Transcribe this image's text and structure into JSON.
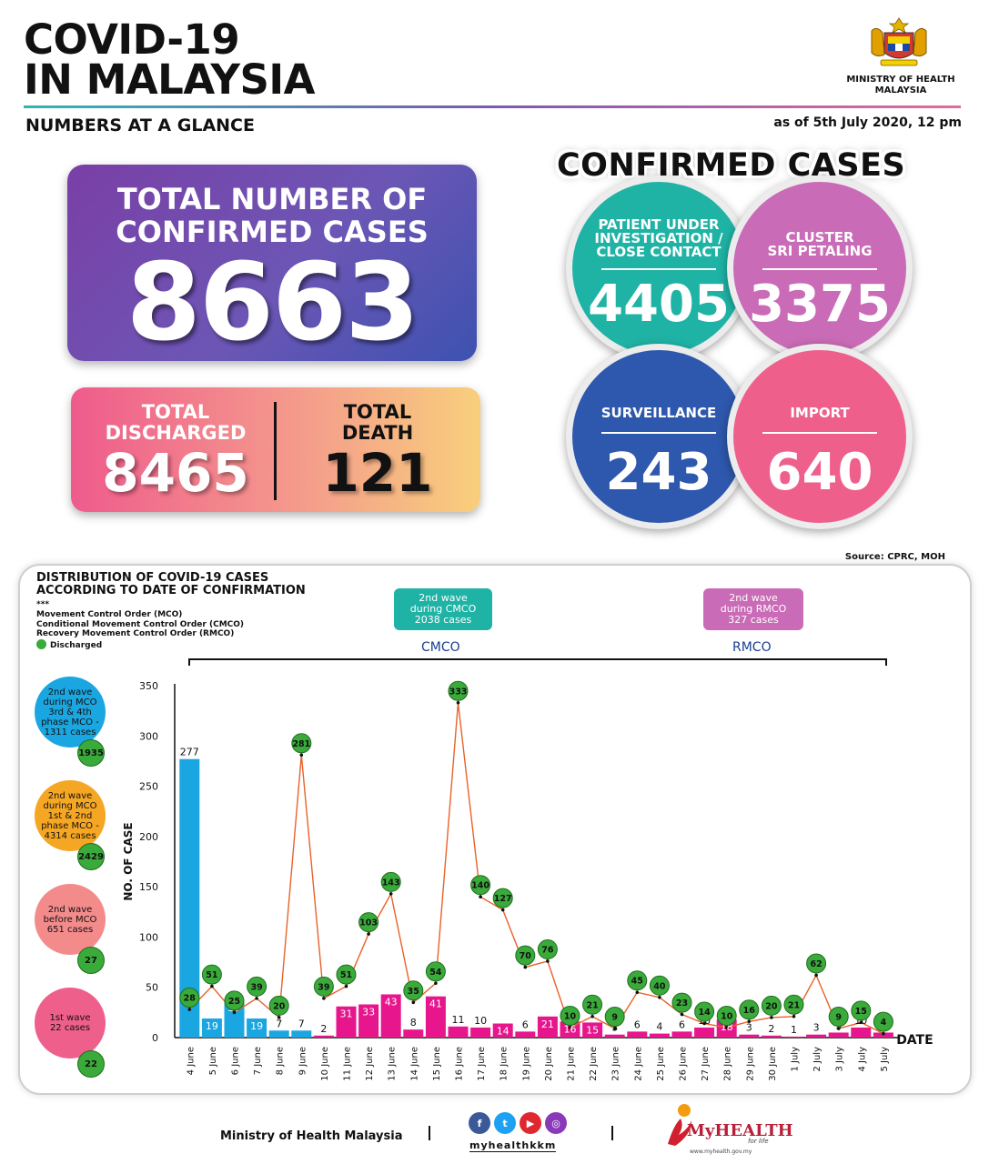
{
  "header": {
    "title_line1": "COVID-19",
    "title_line2": "IN MALAYSIA",
    "subtitle": "NUMBERS AT A GLANCE",
    "as_of": "as of 5th July 2020, 12 pm",
    "ministry_line1": "MINISTRY OF HEALTH",
    "ministry_line2": "MALAYSIA",
    "crest_icon": "malaysia-coat-of-arms-icon"
  },
  "totals": {
    "confirmed_label_1": "TOTAL NUMBER OF",
    "confirmed_label_2": "CONFIRMED CASES",
    "confirmed_value": "8663",
    "discharged_label_1": "TOTAL",
    "discharged_label_2": "DISCHARGED",
    "discharged_value": "8465",
    "death_label_1": "TOTAL",
    "death_label_2": "DEATH",
    "death_value": "121"
  },
  "confirmed_cases": {
    "title": "CONFIRMED CASES",
    "pui": {
      "label_1": "PATIENT UNDER",
      "label_2": "INVESTIGATION /",
      "label_3": "CLOSE CONTACT",
      "value": "4405",
      "color": "#1fb3a5"
    },
    "cluster": {
      "label_1": "CLUSTER",
      "label_2": "SRI PETALING",
      "value": "3375",
      "color": "#c96bb6"
    },
    "surveillance": {
      "label": "SURVEILLANCE",
      "value": "243",
      "color": "#2e58ad"
    },
    "import": {
      "label": "IMPORT",
      "value": "640",
      "color": "#ee5f8c"
    }
  },
  "source": "Source: CPRC, MOH",
  "panel": {
    "title_1": "DISTRIBUTION OF COVID-19 CASES",
    "title_2": "ACCORDING TO DATE OF CONFIRMATION",
    "note_stars": "***",
    "note_1": "Movement Control Order (MCO)",
    "note_2": "Conditional Movement Control Order (CMCO)",
    "note_3": "Recovery Movement Control Order (RMCO)",
    "note_discharged": "Discharged",
    "cmco_box_1": "2nd wave",
    "cmco_box_2": "during CMCO",
    "cmco_box_3": "2038 cases",
    "cmco_label": "CMCO",
    "rmco_box_1": "2nd wave",
    "rmco_box_2": "during RMCO",
    "rmco_box_3": "327 cases",
    "rmco_label": "RMCO",
    "side": [
      {
        "l1": "2nd wave",
        "l2": "during MCO",
        "l3": "3rd & 4th",
        "l4": "phase MCO -",
        "l5": "1311 cases",
        "discharged": "1935",
        "color": "#1aa6e0"
      },
      {
        "l1": "2nd wave",
        "l2": "during MCO",
        "l3": "1st & 2nd",
        "l4": "phase MCO -",
        "l5": "4314 cases",
        "discharged": "2429",
        "color": "#f5a623"
      },
      {
        "l1": "2nd wave",
        "l2": "before MCO",
        "l3": "651 cases",
        "l4": "",
        "l5": "",
        "discharged": "27",
        "color": "#f38b8b"
      },
      {
        "l1": "1st wave",
        "l2": "22 cases",
        "l3": "",
        "l4": "",
        "l5": "",
        "discharged": "22",
        "color": "#ee5f8c"
      }
    ]
  },
  "chart_data": {
    "type": "bar",
    "title": "DISTRIBUTION OF COVID-19 CASES ACCORDING TO DATE OF CONFIRMATION",
    "xlabel": "DATE",
    "ylabel": "NO. OF CASE",
    "ylim": [
      0,
      350
    ],
    "yticks": [
      0,
      50,
      100,
      150,
      200,
      250,
      300,
      350
    ],
    "grid": false,
    "categories": [
      "4 June",
      "5 June",
      "6 June",
      "7 June",
      "8 June",
      "9 June",
      "10 June",
      "11 June",
      "12 June",
      "13 June",
      "14 June",
      "15 June",
      "16 June",
      "17 June",
      "18 June",
      "19 June",
      "20 June",
      "21 June",
      "22 June",
      "23 June",
      "24 June",
      "25 June",
      "26 June",
      "27 June",
      "28 June",
      "29 June",
      "30 June",
      "1 July",
      "2 July",
      "3 July",
      "4 July",
      "5 July"
    ],
    "series": [
      {
        "name": "",
        "type": "bar",
        "values": [
          277,
          19,
          37,
          19,
          7,
          7,
          2,
          31,
          33,
          43,
          8,
          41,
          11,
          10,
          14,
          6,
          21,
          16,
          15,
          3,
          6,
          4,
          6,
          10,
          18,
          3,
          2,
          1,
          3,
          5,
          10,
          5
        ],
        "colors": [
          "#1aa6e0",
          "#1aa6e0",
          "#1aa6e0",
          "#1aa6e0",
          "#1aa6e0",
          "#1aa6e0",
          "#e7168c",
          "#e7168c",
          "#e7168c",
          "#e7168c",
          "#e7168c",
          "#e7168c",
          "#e7168c",
          "#e7168c",
          "#e7168c",
          "#e7168c",
          "#e7168c",
          "#e7168c",
          "#e7168c",
          "#e7168c",
          "#e7168c",
          "#e7168c",
          "#e7168c",
          "#e7168c",
          "#e7168c",
          "#e7168c",
          "#e7168c",
          "#e7168c",
          "#e7168c",
          "#e7168c",
          "#e7168c",
          "#e7168c"
        ]
      },
      {
        "name": "Discharged",
        "type": "line",
        "values": [
          28,
          51,
          25,
          39,
          20,
          281,
          39,
          51,
          103,
          143,
          35,
          54,
          333,
          140,
          127,
          70,
          76,
          10,
          21,
          9,
          45,
          40,
          23,
          14,
          10,
          16,
          20,
          21,
          62,
          9,
          15,
          4
        ],
        "color": "#e8622a",
        "marker_color": "#3aaa3a"
      }
    ]
  },
  "footer": {
    "ministry": "Ministry of Health Malaysia",
    "handle": "myhealthkkm",
    "fb": "f",
    "tw": "t",
    "yt": "▶",
    "ig": "◎",
    "myhealth": "MyHEALTH",
    "myhealth_sub": "for life",
    "myhealth_url": "www.myhealth.gov.my"
  }
}
